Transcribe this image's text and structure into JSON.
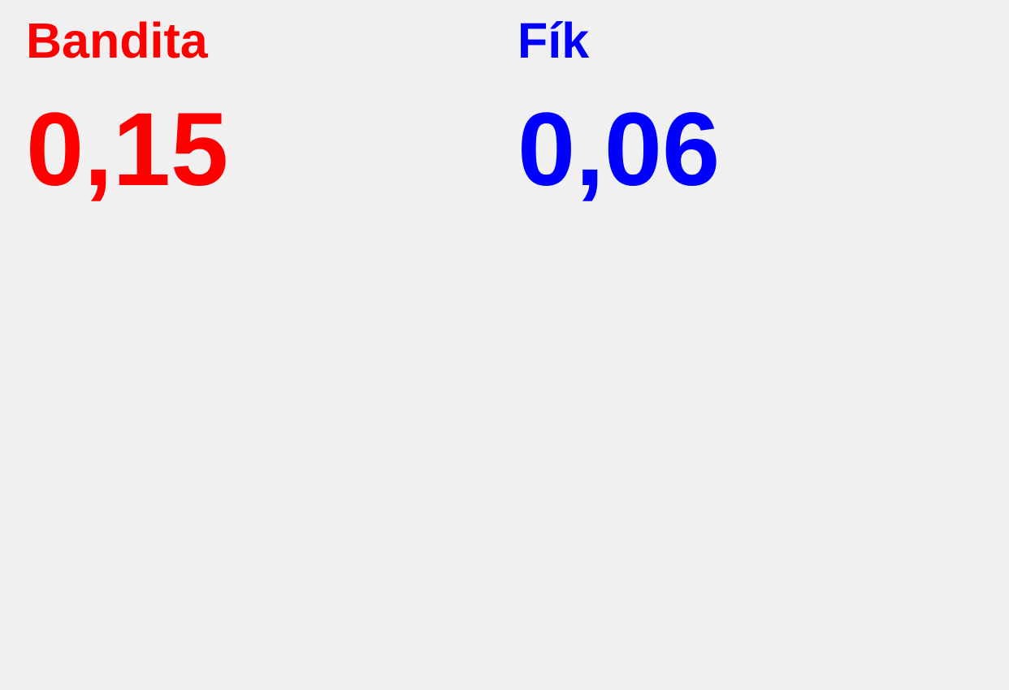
{
  "panels": [
    {
      "label": "Bandita",
      "value": "0,15",
      "color": "#ff0000"
    },
    {
      "label": "Fík",
      "value": "0,06",
      "color": "#0000ff"
    }
  ]
}
